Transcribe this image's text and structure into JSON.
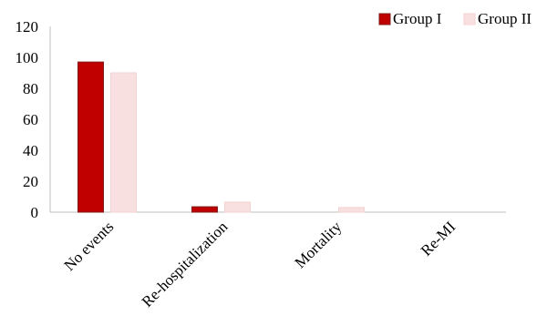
{
  "chart_data": {
    "type": "bar",
    "title": "",
    "xlabel": "",
    "ylabel": "",
    "categories": [
      "No events",
      "Re-hospitalization",
      "Mortality",
      "Re-MI"
    ],
    "series": [
      {
        "name": "Group I",
        "values": [
          97,
          3.5,
          0,
          0
        ],
        "color": "#c00000",
        "stroke": "#7f1d1d"
      },
      {
        "name": "Group II",
        "values": [
          90,
          6.5,
          3,
          0
        ],
        "color": "#f8e0e0",
        "stroke": "#f3d2d2"
      }
    ],
    "ylim": [
      0,
      120
    ],
    "yticks": [
      0,
      20,
      40,
      60,
      80,
      100,
      120
    ],
    "grid": false,
    "legend": "top-right"
  }
}
